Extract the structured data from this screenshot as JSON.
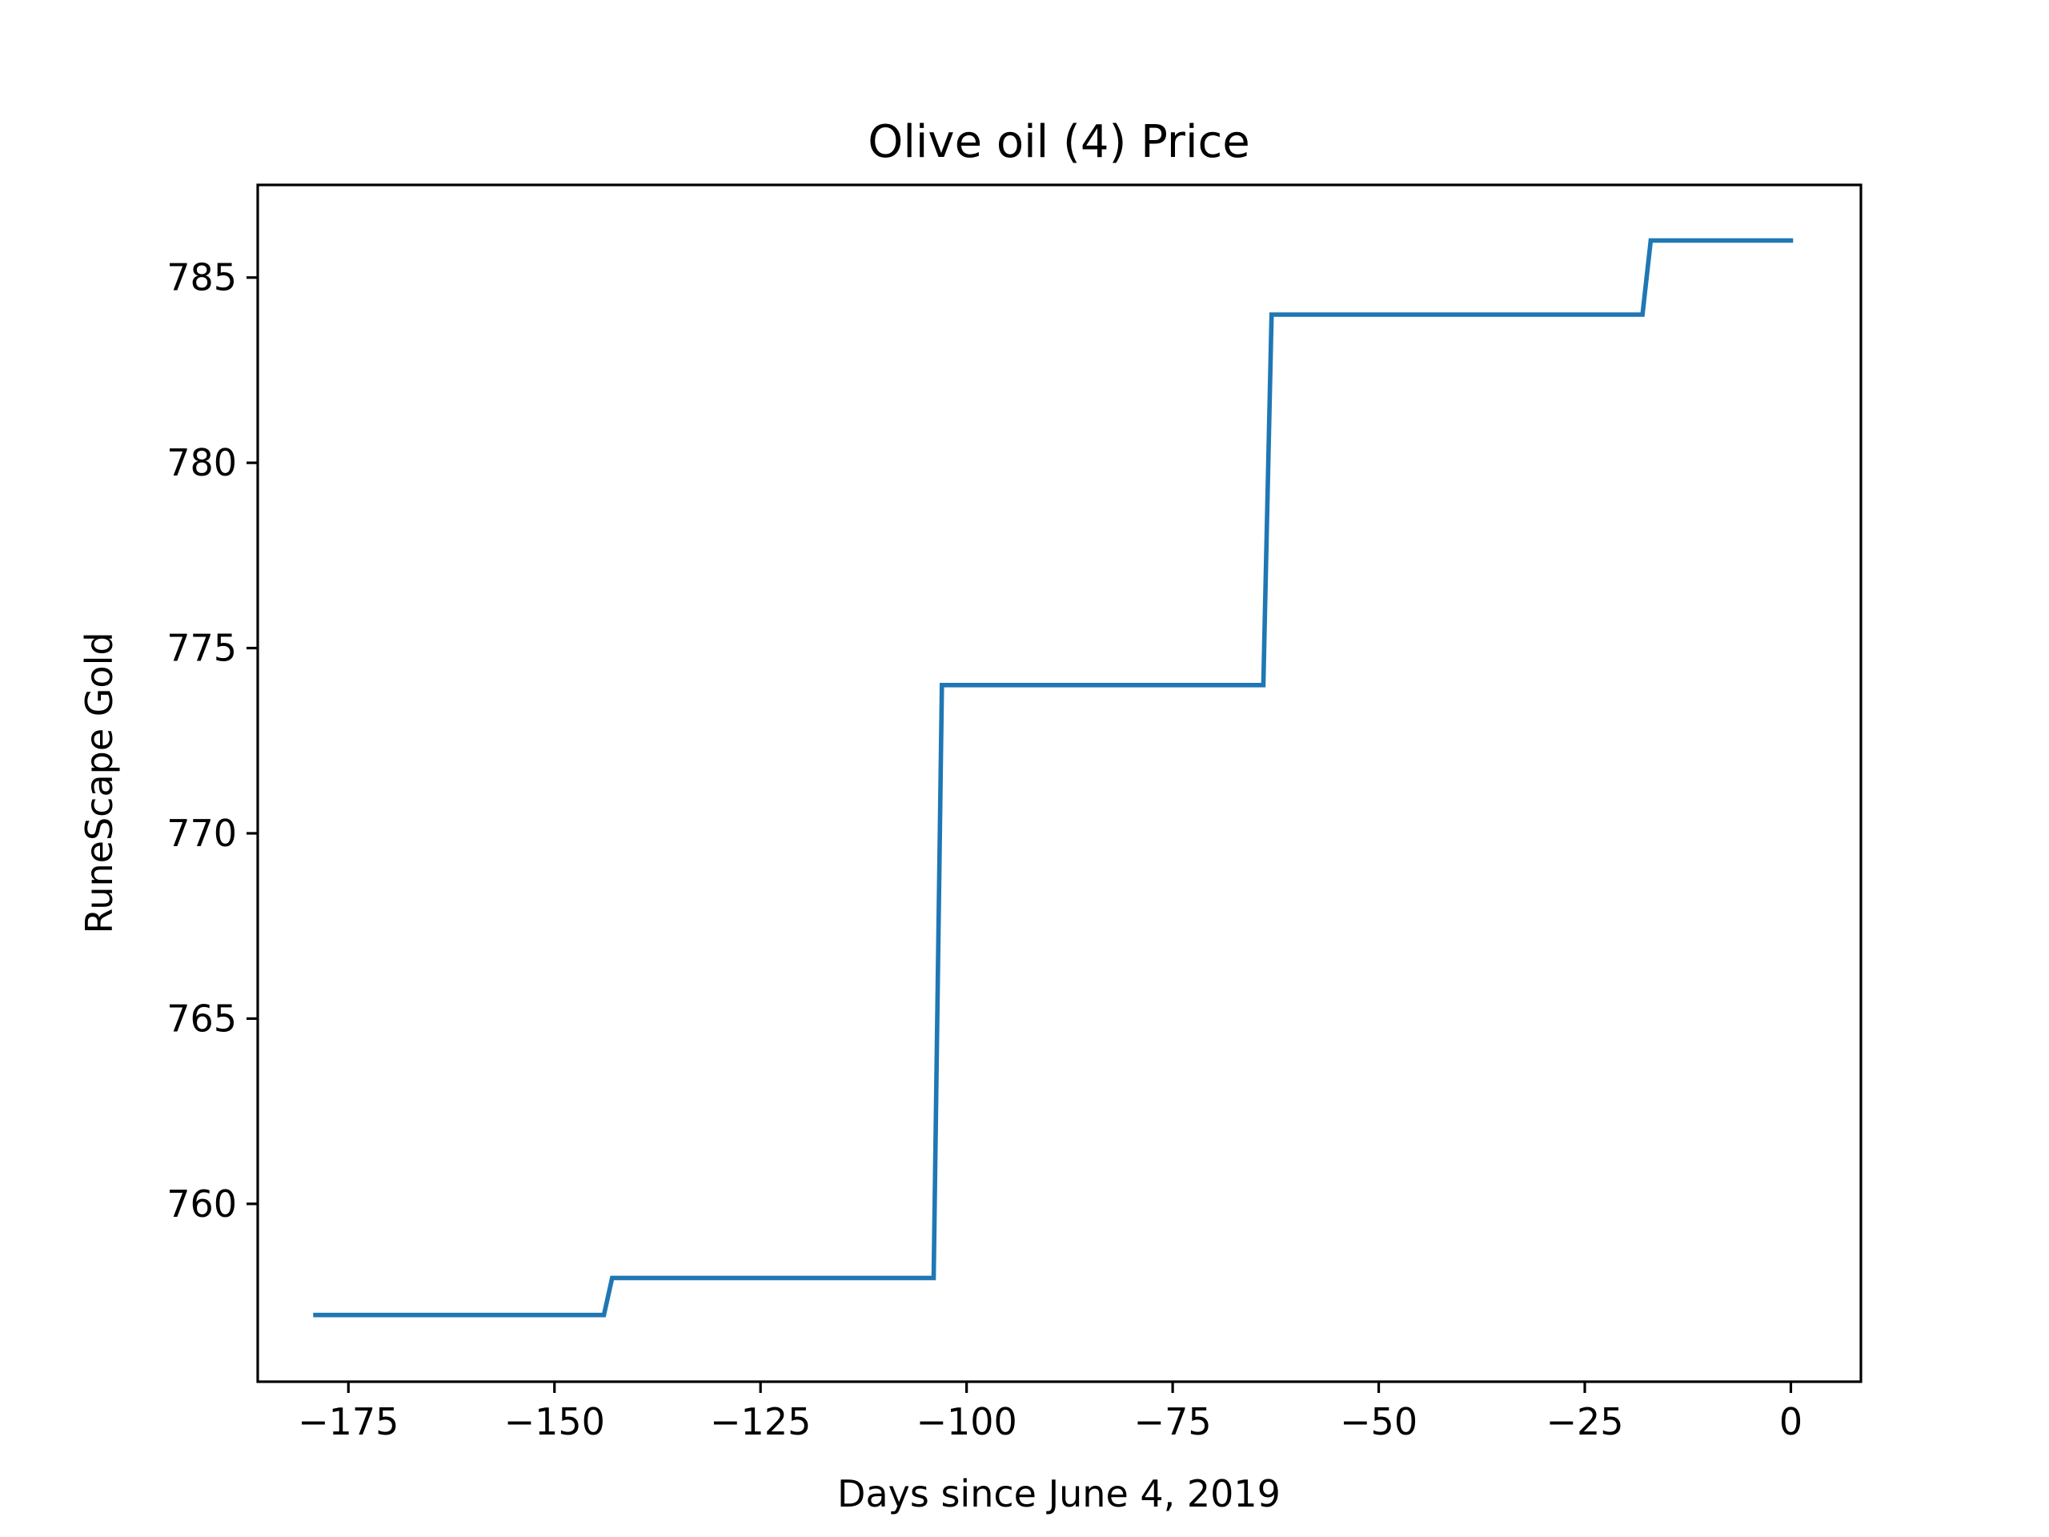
{
  "chart_data": {
    "type": "line",
    "title": "Olive oil (4) Price",
    "xlabel": "Days since June 4, 2019",
    "ylabel": "RuneScape Gold",
    "xlim": [
      -186,
      8.5
    ],
    "ylim": [
      755.2,
      787.5
    ],
    "x_ticks": [
      -175,
      -150,
      -125,
      -100,
      -75,
      -50,
      -25,
      0
    ],
    "x_tick_labels": [
      "−175",
      "−150",
      "−125",
      "−100",
      "−75",
      "−50",
      "−25",
      "0"
    ],
    "y_ticks": [
      760,
      765,
      770,
      775,
      780,
      785
    ],
    "y_tick_labels": [
      "760",
      "765",
      "770",
      "775",
      "780",
      "785"
    ],
    "grid": false,
    "series": [
      {
        "color": "#1f77b4",
        "x": [
          -179,
          -144,
          -143,
          -104,
          -103,
          -64,
          -63,
          -18,
          -17,
          0
        ],
        "y": [
          757,
          757,
          758,
          758,
          774,
          774,
          784,
          784,
          786,
          786
        ]
      }
    ]
  }
}
